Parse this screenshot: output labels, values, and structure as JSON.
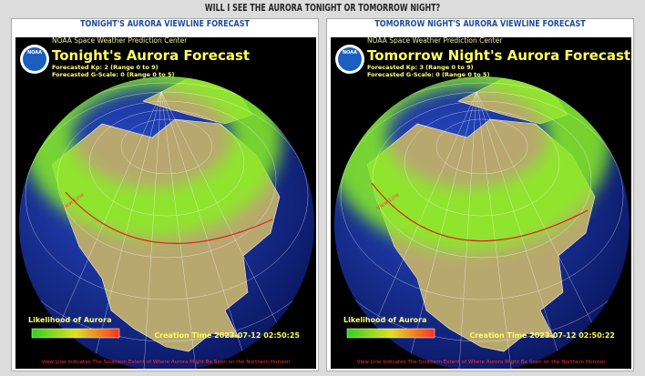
{
  "header": {
    "title": "WILL I SEE THE AURORA TONIGHT OR TOMORROW NIGHT?"
  },
  "panels": [
    {
      "heading": "TONIGHT'S AURORA VIEWLINE FORECAST",
      "image": {
        "logo": "NOAA",
        "agency": "NOAA Space Weather Prediction Center",
        "title": "Tonight's Aurora Forecast",
        "kp": "Forecasted Kp: 2 (Range 0 to 9)",
        "gscale": "Forecasted G-Scale: 0 (Range 0 to 5)",
        "view_line_label": "View Line",
        "legend_title": "Likelihood of Aurora",
        "creation_time": "Creation Time 2023-07-12 02:50:25",
        "footer": "View Line Indicates The Southern Extent of Where Aurora Might Be Seen on the Northern Horizon"
      }
    },
    {
      "heading": "TOMORROW NIGHT'S AURORA VIEWLINE FORECAST",
      "image": {
        "logo": "NOAA",
        "agency": "NOAA Space Weather Prediction Center",
        "title": "Tomorrow Night's Aurora Forecast",
        "kp": "Forecasted Kp: 3 (Range 0 to 9)",
        "gscale": "Forecasted G-Scale: 0 (Range 0 to 5)",
        "view_line_label": "View Line",
        "legend_title": "Likelihood of Aurora",
        "creation_time": "Creation Time 2023-07-12 02:50:22",
        "footer": "View Line Indicates The Southern Extent of Where Aurora Might Be Seen on the Northern Horizon"
      }
    }
  ]
}
